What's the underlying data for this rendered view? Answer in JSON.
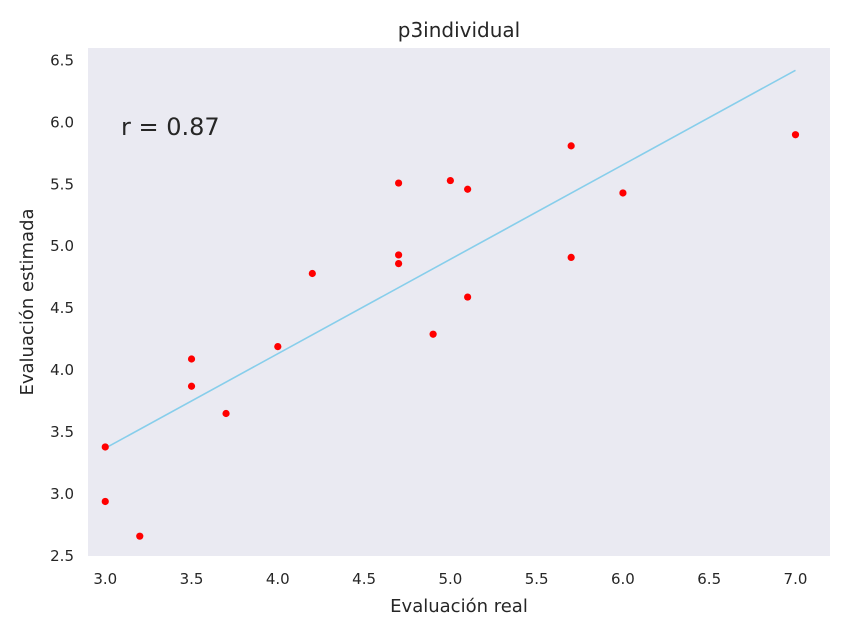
{
  "chart_data": {
    "type": "scatter",
    "title": "p3individual",
    "xlabel": "Evaluación real",
    "ylabel": "Evaluación estimada",
    "xlim": [
      2.9,
      7.2
    ],
    "ylim": [
      2.5,
      6.6
    ],
    "xticks": [
      "3.0",
      "3.5",
      "4.0",
      "4.5",
      "5.0",
      "5.5",
      "6.0",
      "6.5",
      "7.0"
    ],
    "yticks": [
      "2.5",
      "3.0",
      "3.5",
      "4.0",
      "4.5",
      "5.0",
      "5.5",
      "6.0",
      "6.5"
    ],
    "grid": false,
    "annotation": "r = 0.87",
    "colors": {
      "background": "#eaeaf2",
      "points": "#ff0000",
      "line": "#87ceeb"
    },
    "points": [
      {
        "x": 3.0,
        "y": 3.38
      },
      {
        "x": 3.0,
        "y": 2.94
      },
      {
        "x": 3.2,
        "y": 2.66
      },
      {
        "x": 3.5,
        "y": 4.09
      },
      {
        "x": 3.5,
        "y": 3.87
      },
      {
        "x": 3.7,
        "y": 3.65
      },
      {
        "x": 4.0,
        "y": 4.19
      },
      {
        "x": 4.2,
        "y": 4.78
      },
      {
        "x": 4.7,
        "y": 5.51
      },
      {
        "x": 4.7,
        "y": 4.93
      },
      {
        "x": 4.7,
        "y": 4.86
      },
      {
        "x": 4.9,
        "y": 4.29
      },
      {
        "x": 5.0,
        "y": 5.53
      },
      {
        "x": 5.1,
        "y": 5.46
      },
      {
        "x": 5.1,
        "y": 4.59
      },
      {
        "x": 5.7,
        "y": 5.81
      },
      {
        "x": 5.7,
        "y": 4.91
      },
      {
        "x": 6.0,
        "y": 5.43
      },
      {
        "x": 7.0,
        "y": 5.9
      }
    ],
    "fit_line": {
      "x": [
        3.0,
        7.0
      ],
      "y": [
        3.37,
        6.42
      ]
    }
  }
}
